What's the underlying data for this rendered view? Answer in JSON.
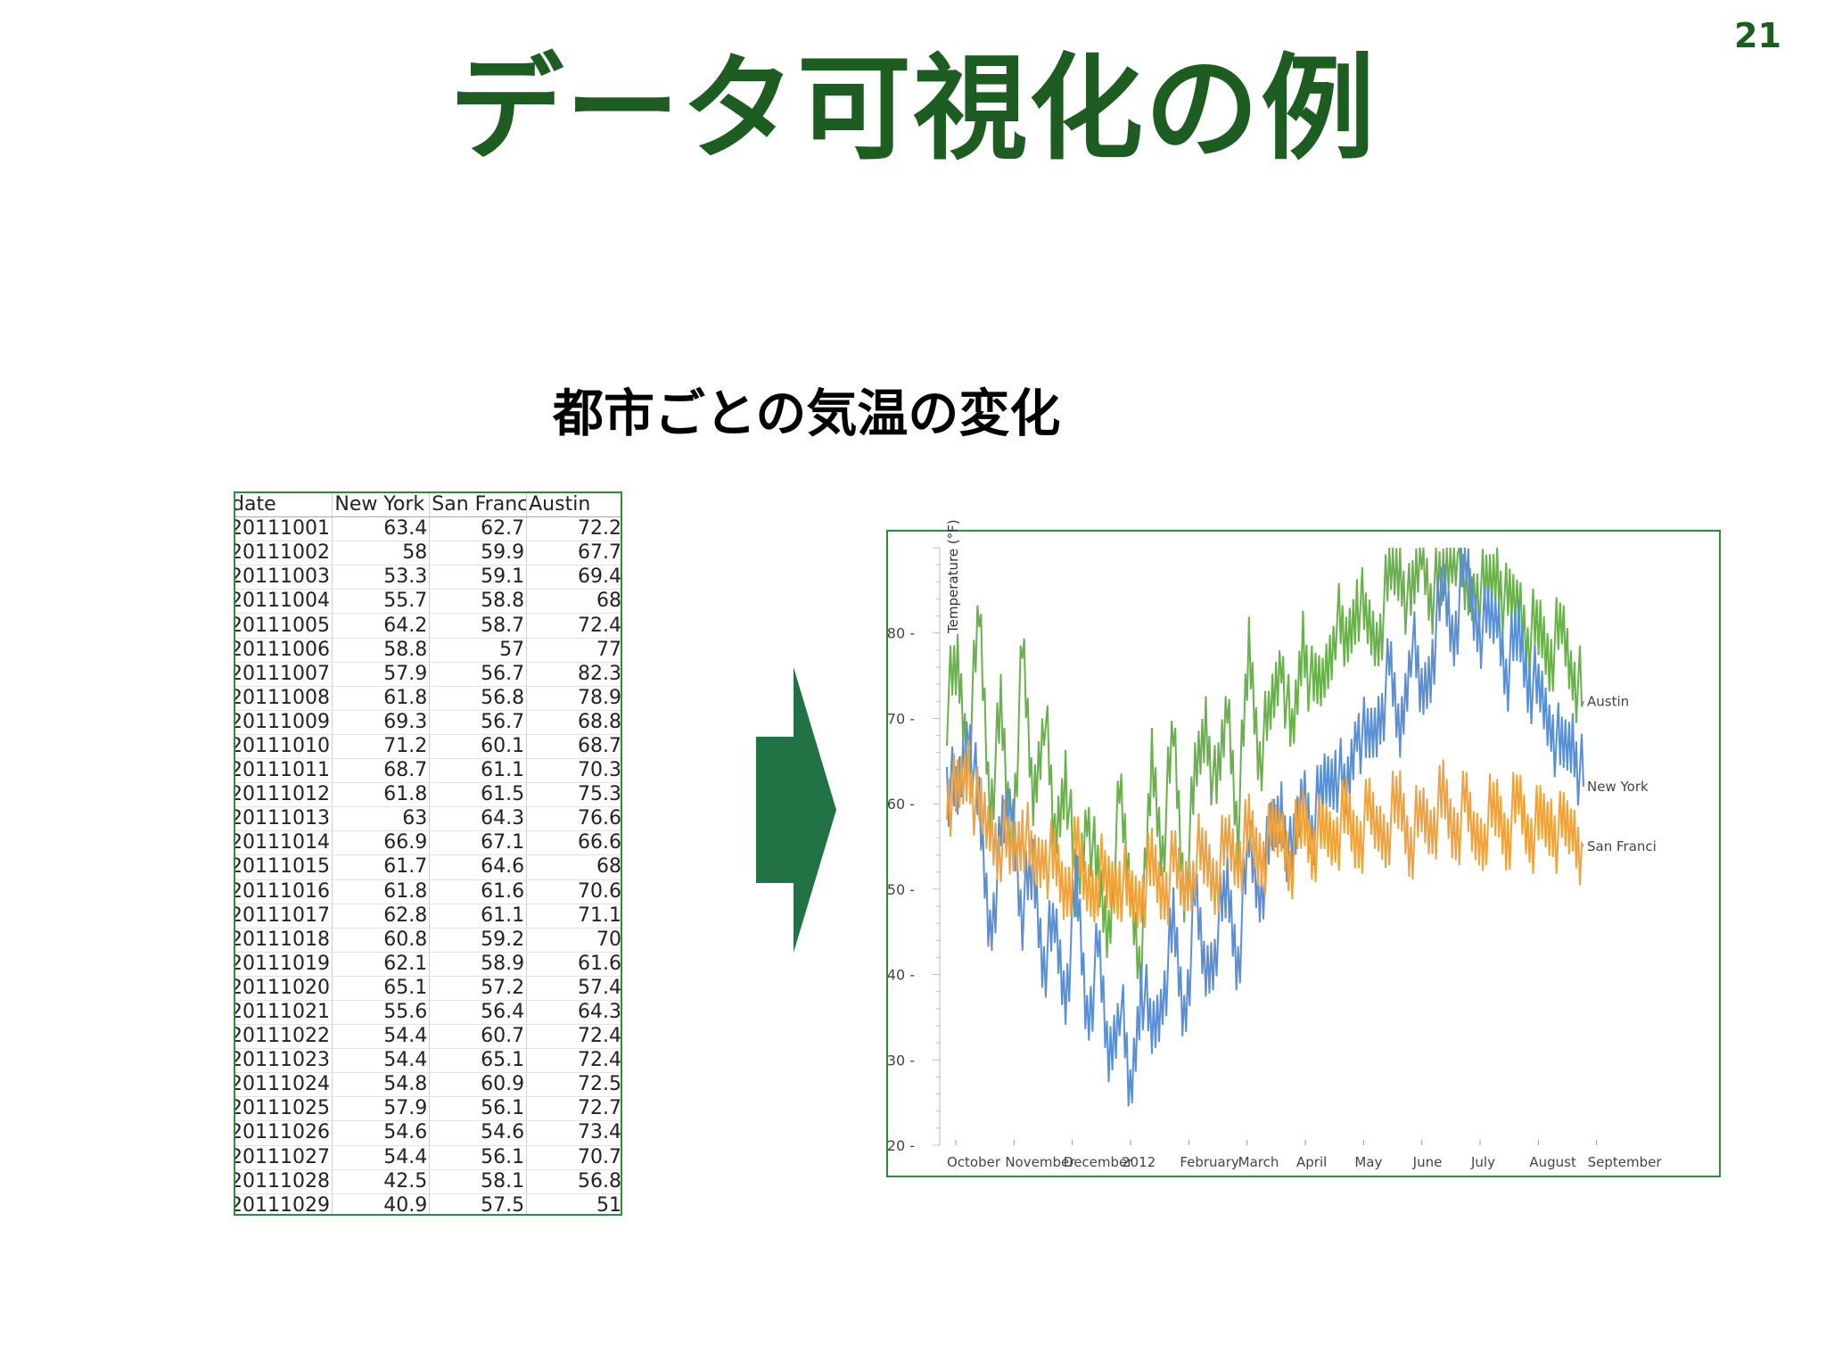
{
  "page_number": "21",
  "title": "データ可視化の例",
  "subtitle": "都市ごとの気温の変化",
  "table": {
    "headers": [
      "date",
      "New York",
      "San Franci",
      "Austin"
    ],
    "rows": [
      [
        "20111001",
        "63.4",
        "62.7",
        "72.2"
      ],
      [
        "20111002",
        "58",
        "59.9",
        "67.7"
      ],
      [
        "20111003",
        "53.3",
        "59.1",
        "69.4"
      ],
      [
        "20111004",
        "55.7",
        "58.8",
        "68"
      ],
      [
        "20111005",
        "64.2",
        "58.7",
        "72.4"
      ],
      [
        "20111006",
        "58.8",
        "57",
        "77"
      ],
      [
        "20111007",
        "57.9",
        "56.7",
        "82.3"
      ],
      [
        "20111008",
        "61.8",
        "56.8",
        "78.9"
      ],
      [
        "20111009",
        "69.3",
        "56.7",
        "68.8"
      ],
      [
        "20111010",
        "71.2",
        "60.1",
        "68.7"
      ],
      [
        "20111011",
        "68.7",
        "61.1",
        "70.3"
      ],
      [
        "20111012",
        "61.8",
        "61.5",
        "75.3"
      ],
      [
        "20111013",
        "63",
        "64.3",
        "76.6"
      ],
      [
        "20111014",
        "66.9",
        "67.1",
        "66.6"
      ],
      [
        "20111015",
        "61.7",
        "64.6",
        "68"
      ],
      [
        "20111016",
        "61.8",
        "61.6",
        "70.6"
      ],
      [
        "20111017",
        "62.8",
        "61.1",
        "71.1"
      ],
      [
        "20111018",
        "60.8",
        "59.2",
        "70"
      ],
      [
        "20111019",
        "62.1",
        "58.9",
        "61.6"
      ],
      [
        "20111020",
        "65.1",
        "57.2",
        "57.4"
      ],
      [
        "20111021",
        "55.6",
        "56.4",
        "64.3"
      ],
      [
        "20111022",
        "54.4",
        "60.7",
        "72.4"
      ],
      [
        "20111023",
        "54.4",
        "65.1",
        "72.4"
      ],
      [
        "20111024",
        "54.8",
        "60.9",
        "72.5"
      ],
      [
        "20111025",
        "57.9",
        "56.1",
        "72.7"
      ],
      [
        "20111026",
        "54.6",
        "54.6",
        "73.4"
      ],
      [
        "20111027",
        "54.4",
        "56.1",
        "70.7"
      ],
      [
        "20111028",
        "42.5",
        "58.1",
        "56.8"
      ],
      [
        "20111029",
        "40.9",
        "57.5",
        "51"
      ]
    ]
  },
  "colors": {
    "title": "#1e5d22",
    "arrow": "#217346",
    "frame": "#2e8b3d",
    "new_york": "#5b8fd4",
    "san_francisco": "#f0a23c",
    "austin": "#6ab04c"
  },
  "chart_data": {
    "type": "line",
    "ylabel": "Temperature (°F)",
    "ylim": [
      20,
      90
    ],
    "y_ticks": [
      20,
      30,
      40,
      50,
      60,
      70,
      80
    ],
    "x_tick_labels": [
      "October",
      "November",
      "December",
      "2012",
      "February",
      "March",
      "April",
      "May",
      "June",
      "July",
      "August",
      "September"
    ],
    "series": [
      {
        "name": "Austin",
        "color": "#6ab04c",
        "label": "Austin",
        "monthly_values": [
          [
            72,
            76,
            66,
            82,
            60
          ],
          [
            70,
            55,
            77,
            60,
            72
          ],
          [
            55,
            65,
            48,
            60,
            50
          ],
          [
            45,
            60,
            50,
            42,
            65
          ],
          [
            55,
            68,
            50,
            62,
            70
          ],
          [
            60,
            72,
            58,
            78,
            66
          ],
          [
            70,
            78,
            66,
            80,
            72
          ],
          [
            75,
            82,
            78,
            85,
            80
          ],
          [
            80,
            86,
            88,
            82,
            90
          ],
          [
            85,
            86,
            92,
            84,
            86
          ],
          [
            84,
            88,
            82,
            84,
            80
          ],
          [
            80,
            78,
            80,
            76,
            72
          ]
        ]
      },
      {
        "name": "New York",
        "color": "#5b8fd4",
        "label": "New York",
        "monthly_values": [
          [
            63,
            60,
            70,
            58,
            45
          ],
          [
            55,
            60,
            48,
            52,
            42
          ],
          [
            45,
            38,
            50,
            35,
            42
          ],
          [
            30,
            38,
            25,
            40,
            32
          ],
          [
            38,
            45,
            35,
            48,
            40
          ],
          [
            45,
            50,
            42,
            55,
            50
          ],
          [
            55,
            60,
            52,
            62,
            58
          ],
          [
            62,
            65,
            60,
            70,
            66
          ],
          [
            70,
            75,
            68,
            80,
            72
          ],
          [
            78,
            85,
            80,
            88,
            82
          ],
          [
            80,
            82,
            76,
            80,
            75
          ],
          [
            72,
            70,
            65,
            68,
            62
          ]
        ]
      },
      {
        "name": "San Francisco",
        "color": "#f0a23c",
        "label": "San Franci",
        "monthly_values": [
          [
            62,
            60,
            65,
            58,
            57
          ],
          [
            56,
            54,
            58,
            52,
            55
          ],
          [
            52,
            50,
            54,
            50,
            52
          ],
          [
            50,
            52,
            48,
            50,
            52
          ],
          [
            50,
            52,
            50,
            54,
            53
          ],
          [
            52,
            55,
            54,
            56,
            54
          ],
          [
            55,
            57,
            54,
            58,
            56
          ],
          [
            56,
            57,
            58,
            56,
            58
          ],
          [
            57,
            58,
            60,
            56,
            58
          ],
          [
            58,
            60,
            57,
            59,
            56
          ],
          [
            58,
            59,
            57,
            60,
            57
          ],
          [
            57,
            58,
            56,
            57,
            55
          ]
        ]
      }
    ]
  }
}
